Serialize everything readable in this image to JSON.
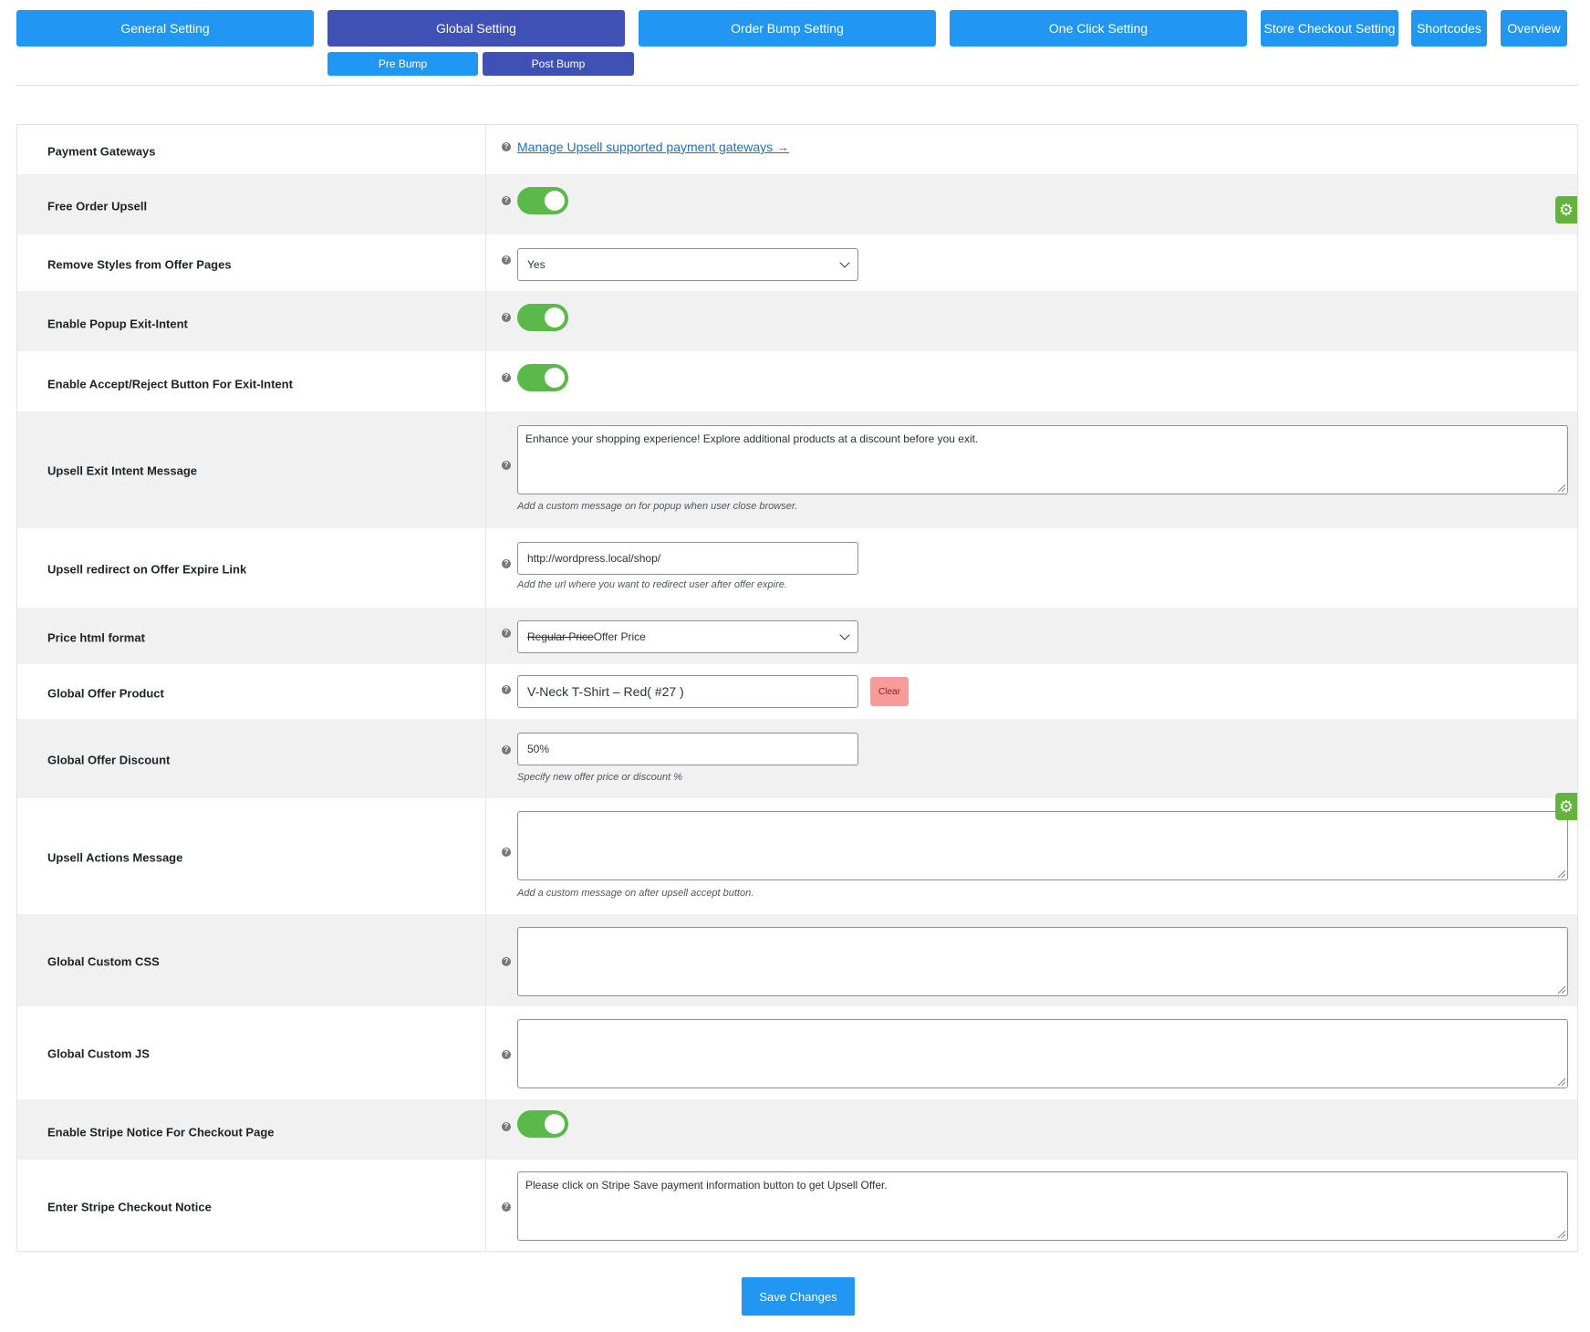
{
  "tabs": {
    "general": "General Setting",
    "global": "Global Setting",
    "order_bump": "Order Bump Setting",
    "one_click": "One Click Setting",
    "store_checkout": "Store Checkout Setting",
    "shortcodes": "Shortcodes",
    "overview": "Overview"
  },
  "subtabs": {
    "pre_bump": "Pre Bump",
    "post_bump": "Post Bump"
  },
  "help_glyph": "?",
  "gear_glyph": "⚙",
  "settings": {
    "payment_gateways": {
      "label": "Payment Gateways",
      "link": "Manage Upsell supported payment gateways →"
    },
    "free_order_upsell": {
      "label": "Free Order Upsell",
      "enabled": true
    },
    "remove_styles": {
      "label": "Remove Styles from Offer Pages",
      "value": "Yes"
    },
    "popup_exit_intent": {
      "label": "Enable Popup Exit-Intent",
      "enabled": true
    },
    "accept_reject_exit": {
      "label": "Enable Accept/Reject Button For Exit-Intent",
      "enabled": true
    },
    "exit_intent_message": {
      "label": "Upsell Exit Intent Message",
      "value": "Enhance your shopping experience! Explore additional products at a discount before you exit.",
      "description": "Add a custom message on for popup when user close browser."
    },
    "expire_link": {
      "label": "Upsell redirect on Offer Expire Link",
      "value": "http://wordpress.local/shop/",
      "description": "Add the url where you want to redirect user after offer expire."
    },
    "price_html_format": {
      "label": "Price html format",
      "regular": "Regular Price",
      "offer": " Offer Price"
    },
    "global_offer_product": {
      "label": "Global Offer Product",
      "value": "V-Neck T-Shirt – Red( #27 )",
      "clear": "Clear"
    },
    "global_offer_discount": {
      "label": "Global Offer Discount",
      "value": "50%",
      "description": "Specify new offer price or discount %"
    },
    "actions_message": {
      "label": "Upsell Actions Message",
      "value": "",
      "description": "Add a custom message on after upsell accept button."
    },
    "custom_css": {
      "label": "Global Custom CSS",
      "value": ""
    },
    "custom_js": {
      "label": "Global Custom JS",
      "value": ""
    },
    "stripe_notice_enable": {
      "label": "Enable Stripe Notice For Checkout Page",
      "enabled": true
    },
    "stripe_checkout_notice": {
      "label": "Enter Stripe Checkout Notice",
      "value": "Please click on Stripe Save payment information button to get Upsell Offer."
    }
  },
  "save_label": "Save Changes",
  "colors": {
    "tab_blue": "#2196f3",
    "tab_active": "#3f51b5",
    "toggle_on": "#5bb94b",
    "clear_btn": "#f89b9b"
  }
}
